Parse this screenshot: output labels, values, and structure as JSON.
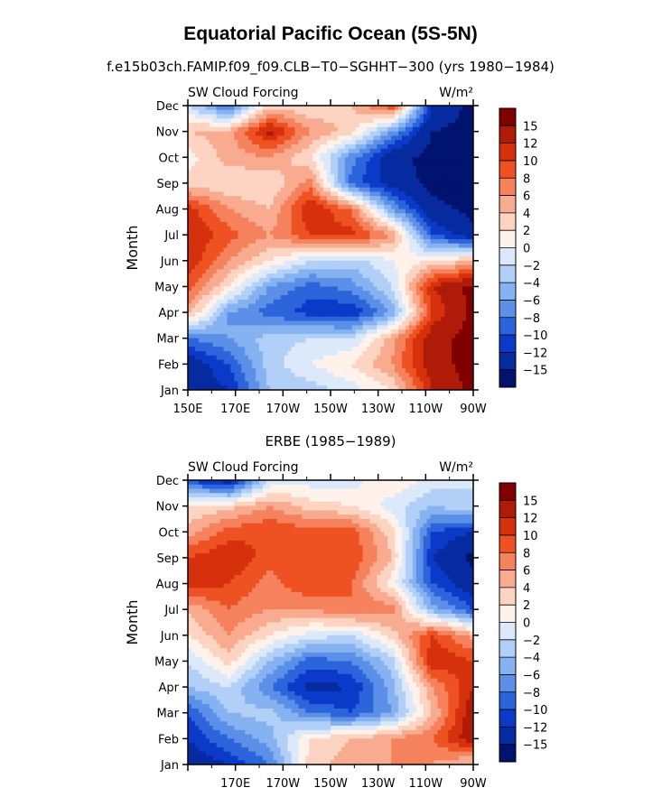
{
  "title": "Equatorial Pacific Ocean (5S-5N)",
  "colorbar": {
    "labels": [
      "15",
      "12",
      "10",
      "8",
      "6",
      "4",
      "2",
      "0",
      "−2",
      "−4",
      "−6",
      "−8",
      "−10",
      "−12",
      "−15"
    ],
    "colors": [
      "#800000",
      "#b01a08",
      "#d7300c",
      "#ee5222",
      "#f5825c",
      "#f9ab90",
      "#fdd3c2",
      "#fff2ea",
      "#dce9fb",
      "#b2cff7",
      "#86b2f1",
      "#5c8fe8",
      "#2c64db",
      "#0a3ac7",
      "#062aa0",
      "#00136e"
    ]
  },
  "chart_data": [
    {
      "type": "heatmap",
      "title": "f.e15b03ch.FAMIP.f09_f09.CLB−T0−SGHHT−300 (yrs 1980−1984)",
      "left_label": "SW Cloud Forcing",
      "units_label": "W/m²",
      "ylabel": "Month",
      "y_categories": [
        "Jan",
        "Feb",
        "Mar",
        "Apr",
        "May",
        "Jun",
        "Jul",
        "Aug",
        "Sep",
        "Oct",
        "Nov",
        "Dec"
      ],
      "x_ticks": [
        "150E",
        "170E",
        "170W",
        "150W",
        "130W",
        "110W",
        "90W"
      ],
      "x_tick_values": [
        150,
        170,
        190,
        210,
        230,
        250,
        270
      ],
      "xlim": [
        150,
        270
      ],
      "x_grid": [
        150,
        170,
        190,
        210,
        230,
        250,
        270
      ],
      "z": [
        [
          -14,
          -12,
          -4,
          -3,
          -1,
          2,
          12,
          16
        ],
        [
          -14,
          -10,
          -3,
          0,
          2,
          6,
          14,
          16
        ],
        [
          -8,
          -6,
          -3,
          -2,
          -2,
          5,
          14,
          16
        ],
        [
          5,
          -6,
          -9,
          -11,
          -12,
          -6,
          10,
          16
        ],
        [
          9,
          2,
          -6,
          -9,
          -7,
          -2,
          12,
          16
        ],
        [
          12,
          6,
          2,
          -2,
          -3,
          0,
          2,
          4
        ],
        [
          12,
          9,
          6,
          10,
          11,
          6,
          -10,
          -14
        ],
        [
          11,
          6,
          4,
          12,
          8,
          -6,
          -14,
          -16
        ],
        [
          3,
          2,
          2,
          7,
          -9,
          -13,
          -16,
          -16
        ],
        [
          1,
          5,
          6,
          2,
          -7,
          -14,
          -16,
          -16
        ],
        [
          4,
          5,
          13,
          6,
          3,
          -6,
          -15,
          -16
        ],
        [
          -2,
          -9,
          3,
          2,
          4,
          10,
          -12,
          -16
        ]
      ]
    },
    {
      "type": "heatmap",
      "title": "ERBE (1985−1989)",
      "left_label": "SW Cloud Forcing",
      "units_label": "W/m²",
      "ylabel": "Month",
      "y_categories": [
        "Jan",
        "Feb",
        "Mar",
        "Apr",
        "May",
        "Jun",
        "Jul",
        "Aug",
        "Sep",
        "Oct",
        "Nov",
        "Dec"
      ],
      "x_ticks": [
        "170E",
        "170W",
        "150W",
        "130W",
        "110W",
        "90W"
      ],
      "x_tick_values": [
        170,
        190,
        210,
        230,
        250,
        270
      ],
      "xlim": [
        150,
        270
      ],
      "x_grid": [
        150,
        170,
        190,
        210,
        230,
        250,
        270
      ],
      "z": [
        [
          -14,
          -12,
          -8,
          3,
          5,
          6,
          6,
          3
        ],
        [
          -12,
          -8,
          -5,
          2,
          4,
          6,
          8,
          14
        ],
        [
          -10,
          -4,
          -3,
          -8,
          -10,
          -6,
          4,
          14
        ],
        [
          -4,
          -2,
          -8,
          -13,
          -12,
          -5,
          6,
          12
        ],
        [
          -2,
          3,
          -4,
          -9,
          -8,
          -3,
          12,
          10
        ],
        [
          2,
          6,
          2,
          -1,
          -2,
          3,
          10,
          5
        ],
        [
          4,
          8,
          6,
          6,
          8,
          7,
          -5,
          -10
        ],
        [
          12,
          10,
          7,
          10,
          8,
          1,
          -10,
          -14
        ],
        [
          10,
          12,
          9,
          9,
          10,
          4,
          -12,
          -16
        ],
        [
          5,
          9,
          10,
          9,
          9,
          3,
          -10,
          -12
        ],
        [
          2,
          3,
          6,
          3,
          2,
          -1,
          -4,
          -2
        ],
        [
          -10,
          -14,
          -2,
          -1,
          -1,
          2,
          -1,
          -2
        ]
      ]
    }
  ]
}
